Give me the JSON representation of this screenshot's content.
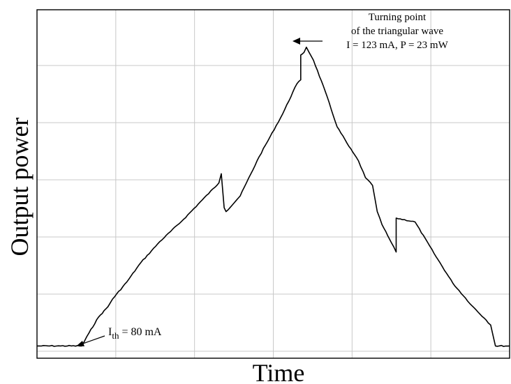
{
  "chart_data": {
    "type": "line",
    "title": "",
    "xlabel": "Time",
    "ylabel": "Output power",
    "grid": true,
    "xlim": [
      0,
      100
    ],
    "ylim": [
      0,
      25
    ],
    "series": [
      {
        "points": [
          [
            0,
            0.3
          ],
          [
            5,
            0.3
          ],
          [
            9.5,
            0.3
          ],
          [
            11,
            1.3
          ],
          [
            13,
            2.5
          ],
          [
            15,
            3.3
          ],
          [
            16,
            3.9
          ],
          [
            19,
            5.2
          ],
          [
            22,
            6.7
          ],
          [
            26,
            8.3
          ],
          [
            31,
            10.0
          ],
          [
            35,
            11.5
          ],
          [
            38.5,
            12.8
          ],
          [
            39,
            13.5
          ],
          [
            39.6,
            10.9
          ],
          [
            40,
            10.6
          ],
          [
            43,
            11.8
          ],
          [
            47,
            14.8
          ],
          [
            52,
            18.1
          ],
          [
            55,
            20.4
          ],
          [
            55.8,
            20.7
          ],
          [
            55.8,
            22.6
          ],
          [
            56.5,
            22.8
          ],
          [
            57,
            23.2
          ],
          [
            58.5,
            22.2
          ],
          [
            61,
            19.8
          ],
          [
            63.5,
            17.1
          ],
          [
            66,
            15.6
          ],
          [
            68,
            14.5
          ],
          [
            69.5,
            13.2
          ],
          [
            71,
            12.6
          ],
          [
            72,
            10.6
          ],
          [
            73,
            9.6
          ],
          [
            75,
            8.2
          ],
          [
            76,
            7.5
          ],
          [
            76,
            10.1
          ],
          [
            80,
            9.8
          ],
          [
            84,
            7.4
          ],
          [
            88,
            5.1
          ],
          [
            92,
            3.4
          ],
          [
            95,
            2.3
          ],
          [
            96,
            1.9
          ],
          [
            97,
            0.3
          ],
          [
            100,
            0.3
          ]
        ]
      }
    ],
    "annotations": {
      "turning_point": {
        "lines": [
          "Turning point",
          "of the triangular wave",
          "I = 123 mA, P = 23 mW"
        ]
      },
      "threshold": {
        "main": "I",
        "sub": "th",
        "rest": " = 80 mA"
      }
    }
  }
}
